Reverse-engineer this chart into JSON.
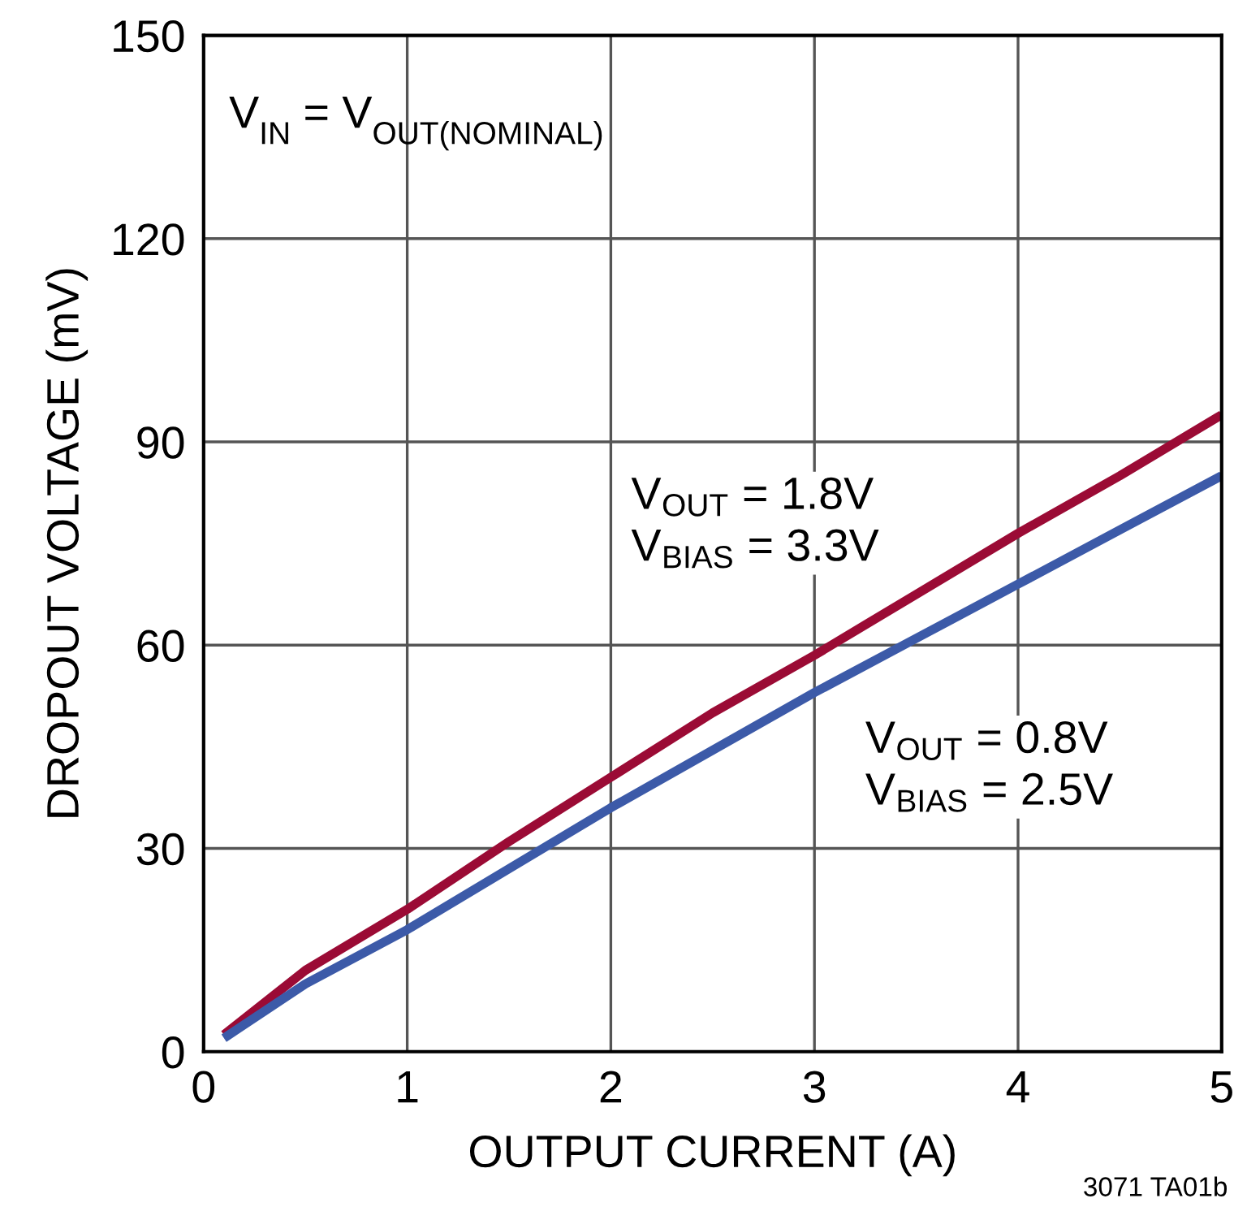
{
  "chart_data": {
    "type": "line",
    "xlabel": "OUTPUT CURRENT (A)",
    "ylabel": "DROPOUT VOLTAGE (mV)",
    "x": [
      0.1,
      0.5,
      1,
      1.5,
      2,
      2.5,
      3,
      3.5,
      4,
      4.5,
      5
    ],
    "series": [
      {
        "name": "V$_{OUT}$ = 1.8V\nV$_{BIAS}$ = 3.3V",
        "color": "#9b0b35",
        "values": [
          2.5,
          12,
          21,
          31,
          40.5,
          50,
          58.5,
          67.5,
          76.5,
          85,
          94
        ]
      },
      {
        "name": "V$_{OUT}$ = 0.8V\nV$_{BIAS}$ = 2.5V",
        "color": "#3c5aa8",
        "values": [
          2,
          10,
          18,
          27,
          36,
          44.5,
          53,
          61,
          69,
          77,
          85
        ]
      }
    ],
    "xlim": [
      0,
      5
    ],
    "ylim": [
      0,
      150
    ],
    "xticks": [
      0,
      1,
      2,
      3,
      4,
      5
    ],
    "yticks": [
      0,
      30,
      60,
      90,
      120,
      150
    ],
    "grid": true,
    "line_style": "solid",
    "annotations": [
      "V$_{IN}$ = V$_{OUT(NOMINAL)}$",
      "3071 TA01b"
    ]
  }
}
